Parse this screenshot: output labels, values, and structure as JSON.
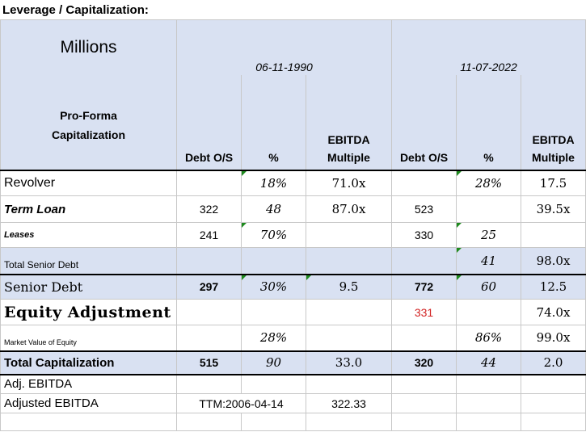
{
  "title": "Leverage / Capitalization:",
  "units": "Millions",
  "dates": [
    "06-11-1990",
    "11-07-2022"
  ],
  "header": {
    "section": "Pro-Forma\nCapitalization",
    "debt": "Debt O/S",
    "pct": "%",
    "multiple": "EBITDA\nMultiple"
  },
  "rows": [
    {
      "label": "Revolver",
      "d1": "",
      "p1": "18%",
      "m1": "71.0x",
      "d2": "",
      "p2": "28%",
      "m2": "17.5"
    },
    {
      "label": "Term Loan",
      "d1": "322",
      "p1": "48",
      "m1": "87.0x",
      "d2": "523",
      "p2": "",
      "m2": "39.5x"
    },
    {
      "label": "Leases",
      "d1": "241",
      "p1": "70%",
      "m1": "",
      "d2": "330",
      "p2": "25",
      "m2": ""
    },
    {
      "label": "Total Senior Debt",
      "d1": "",
      "p1": "",
      "m1": "",
      "d2": "",
      "p2": "41",
      "m2": "98.0x"
    },
    {
      "label": "Senior Debt",
      "d1": "297",
      "p1": "30%",
      "m1": "9.5",
      "d2": "772",
      "p2": "60",
      "m2": "12.5"
    },
    {
      "label": "Equity Adjustment",
      "d1": "",
      "p1": "",
      "m1": "",
      "d2": "331",
      "p2": "",
      "m2": "74.0x"
    },
    {
      "label": "Market Value of Equity",
      "d1": "",
      "p1": "28%",
      "m1": "",
      "d2": "",
      "p2": "86%",
      "m2": "99.0x"
    },
    {
      "label": "Total Capitalization",
      "d1": "515",
      "p1": "90",
      "m1": "33.0",
      "d2": "320",
      "p2": "44",
      "m2": "2.0"
    }
  ],
  "footer": {
    "adj_label": "Adj. EBITDA",
    "adjusted_label": "Adjusted EBITDA",
    "ttm": "TTM:2006-04-14",
    "value": "322.33"
  },
  "colors": {
    "header_fill": "#d9e1f2",
    "marker": "#1e8a1e",
    "red_value": "#d22222"
  }
}
